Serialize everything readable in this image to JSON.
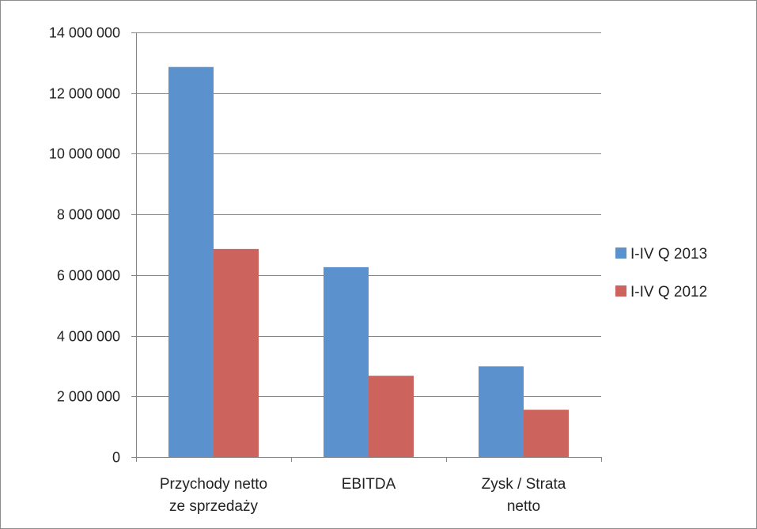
{
  "chart_data": {
    "type": "bar",
    "title": "",
    "xlabel": "",
    "ylabel": "",
    "categories": [
      [
        "Przychody netto",
        "ze sprzedaży"
      ],
      [
        "EBITDA"
      ],
      [
        "Zysk / Strata",
        "netto"
      ]
    ],
    "series": [
      {
        "name": "I-IV Q 2013",
        "color": "#5b92cd",
        "values": [
          12860000,
          6260000,
          2990000
        ]
      },
      {
        "name": "I-IV Q 2012",
        "color": "#cc635c",
        "values": [
          6860000,
          2680000,
          1560000
        ]
      }
    ],
    "ylim": [
      0,
      14000000
    ],
    "yticks": [
      "0",
      "2 000 000",
      "4 000 000",
      "6 000 000",
      "8 000 000",
      "10 000 000",
      "12 000 000",
      "14 000 000"
    ],
    "ytick_values": [
      0,
      2000000,
      4000000,
      6000000,
      8000000,
      10000000,
      12000000,
      14000000
    ],
    "grid": true,
    "legend_position": "right"
  }
}
